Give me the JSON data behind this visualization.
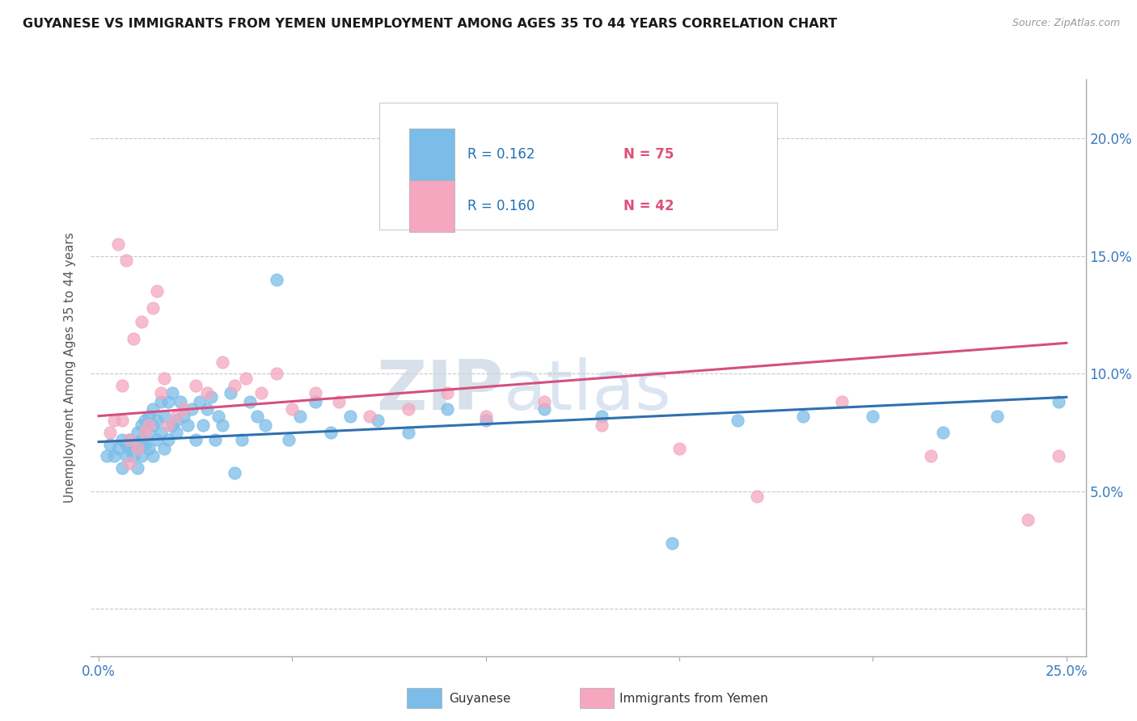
{
  "title": "GUYANESE VS IMMIGRANTS FROM YEMEN UNEMPLOYMENT AMONG AGES 35 TO 44 YEARS CORRELATION CHART",
  "source": "Source: ZipAtlas.com",
  "ylabel": "Unemployment Among Ages 35 to 44 years",
  "xlim": [
    -0.002,
    0.255
  ],
  "ylim": [
    -0.02,
    0.225
  ],
  "xticks": [
    0.0,
    0.05,
    0.1,
    0.15,
    0.2,
    0.25
  ],
  "yticks": [
    0.0,
    0.05,
    0.1,
    0.15,
    0.2
  ],
  "guyanese_color": "#7bbde8",
  "yemen_color": "#f4a7bf",
  "guyanese_line_color": "#3070b0",
  "yemen_line_color": "#d45080",
  "legend_R_guyanese": "R = 0.162",
  "legend_N_guyanese": "N = 75",
  "legend_R_yemen": "R = 0.160",
  "legend_N_yemen": "N = 42",
  "watermark_ZIP": "ZIP",
  "watermark_atlas": "atlas",
  "background_color": "#ffffff",
  "grid_color": "#c8c8c8",
  "title_color": "#1a1a1a",
  "axis_label_color": "#3a7abf",
  "ylabel_color": "#555555",
  "guyanese_x": [
    0.002,
    0.003,
    0.004,
    0.005,
    0.006,
    0.006,
    0.007,
    0.007,
    0.008,
    0.008,
    0.009,
    0.009,
    0.01,
    0.01,
    0.01,
    0.011,
    0.011,
    0.011,
    0.012,
    0.012,
    0.013,
    0.013,
    0.013,
    0.014,
    0.014,
    0.014,
    0.015,
    0.015,
    0.016,
    0.016,
    0.017,
    0.017,
    0.018,
    0.018,
    0.019,
    0.019,
    0.02,
    0.02,
    0.021,
    0.022,
    0.023,
    0.024,
    0.025,
    0.026,
    0.027,
    0.028,
    0.029,
    0.03,
    0.031,
    0.032,
    0.034,
    0.035,
    0.037,
    0.039,
    0.041,
    0.043,
    0.046,
    0.049,
    0.052,
    0.056,
    0.06,
    0.065,
    0.072,
    0.08,
    0.09,
    0.1,
    0.115,
    0.13,
    0.148,
    0.165,
    0.182,
    0.2,
    0.218,
    0.232,
    0.248
  ],
  "guyanese_y": [
    0.065,
    0.07,
    0.065,
    0.068,
    0.072,
    0.06,
    0.07,
    0.065,
    0.068,
    0.072,
    0.065,
    0.07,
    0.075,
    0.068,
    0.06,
    0.078,
    0.072,
    0.065,
    0.07,
    0.08,
    0.075,
    0.068,
    0.082,
    0.078,
    0.065,
    0.085,
    0.072,
    0.08,
    0.088,
    0.075,
    0.068,
    0.082,
    0.072,
    0.088,
    0.078,
    0.092,
    0.08,
    0.075,
    0.088,
    0.082,
    0.078,
    0.085,
    0.072,
    0.088,
    0.078,
    0.085,
    0.09,
    0.072,
    0.082,
    0.078,
    0.092,
    0.058,
    0.072,
    0.088,
    0.082,
    0.078,
    0.14,
    0.072,
    0.082,
    0.088,
    0.075,
    0.082,
    0.08,
    0.075,
    0.085,
    0.08,
    0.085,
    0.082,
    0.028,
    0.08,
    0.082,
    0.082,
    0.075,
    0.082,
    0.088
  ],
  "yemen_x": [
    0.003,
    0.004,
    0.005,
    0.006,
    0.007,
    0.008,
    0.009,
    0.01,
    0.011,
    0.012,
    0.013,
    0.014,
    0.015,
    0.016,
    0.017,
    0.018,
    0.02,
    0.022,
    0.025,
    0.028,
    0.032,
    0.035,
    0.038,
    0.042,
    0.046,
    0.05,
    0.056,
    0.062,
    0.07,
    0.08,
    0.09,
    0.1,
    0.115,
    0.13,
    0.15,
    0.17,
    0.192,
    0.215,
    0.24,
    0.248,
    0.006,
    0.008
  ],
  "yemen_y": [
    0.075,
    0.08,
    0.155,
    0.08,
    0.148,
    0.072,
    0.115,
    0.068,
    0.122,
    0.075,
    0.078,
    0.128,
    0.135,
    0.092,
    0.098,
    0.078,
    0.082,
    0.085,
    0.095,
    0.092,
    0.105,
    0.095,
    0.098,
    0.092,
    0.1,
    0.085,
    0.092,
    0.088,
    0.082,
    0.085,
    0.092,
    0.082,
    0.088,
    0.078,
    0.068,
    0.048,
    0.088,
    0.065,
    0.038,
    0.065,
    0.095,
    0.062
  ],
  "trend_guyanese_x0": 0.0,
  "trend_guyanese_y0": 0.071,
  "trend_guyanese_x1": 0.25,
  "trend_guyanese_y1": 0.09,
  "trend_yemen_x0": 0.0,
  "trend_yemen_y0": 0.082,
  "trend_yemen_x1": 0.25,
  "trend_yemen_y1": 0.113
}
